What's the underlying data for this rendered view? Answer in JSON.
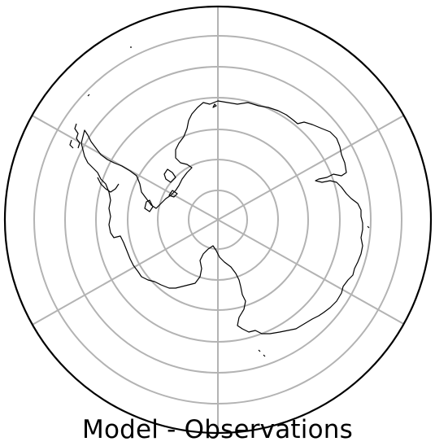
{
  "map": {
    "title": "Model - Observations",
    "projection": "south-polar-stereographic",
    "colors": {
      "background": "#ffffff",
      "graticule": "#b3b3b3",
      "coastline": "#000000",
      "boundary": "#000000"
    },
    "graticule": {
      "meridians_deg": [
        0,
        60,
        120,
        180,
        240,
        300
      ],
      "parallels_deg": [
        -85,
        -80,
        -75,
        -70,
        -65,
        -60,
        -55
      ]
    }
  }
}
